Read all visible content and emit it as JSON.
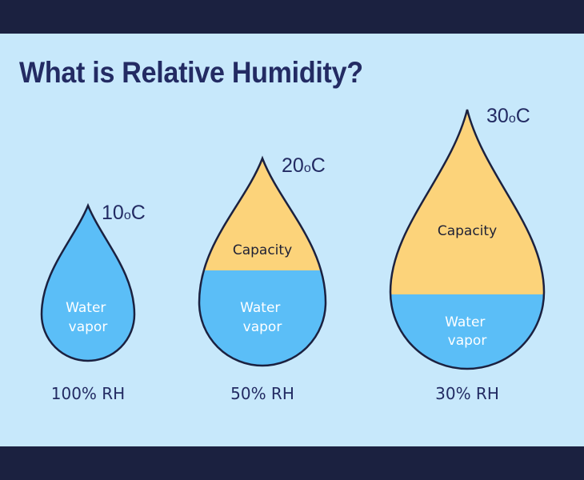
{
  "title": "What is Relative Humidity?",
  "colors": {
    "background": "#c7e8fb",
    "band": "#1b2140",
    "water_vapor": "#5bbef7",
    "capacity": "#fcd37a",
    "outline": "#1b2140",
    "text_dark": "#232b63"
  },
  "drops": [
    {
      "temperature_value": "10",
      "temperature_deg": "o",
      "temperature_unit": "C",
      "water_label_line1": "Water",
      "water_label_line2": "vapor",
      "capacity_label": "",
      "rh_label": "100% RH",
      "water_fraction": 1.0
    },
    {
      "temperature_value": "20",
      "temperature_deg": "o",
      "temperature_unit": "C",
      "water_label_line1": "Water",
      "water_label_line2": "vapor",
      "capacity_label": "Capacity",
      "rh_label": "50% RH",
      "water_fraction": 0.5
    },
    {
      "temperature_value": "30",
      "temperature_deg": "o",
      "temperature_unit": "C",
      "water_label_line1": "Water",
      "water_label_line2": "vapor",
      "capacity_label": "Capacity",
      "rh_label": "30% RH",
      "water_fraction": 0.3
    }
  ]
}
